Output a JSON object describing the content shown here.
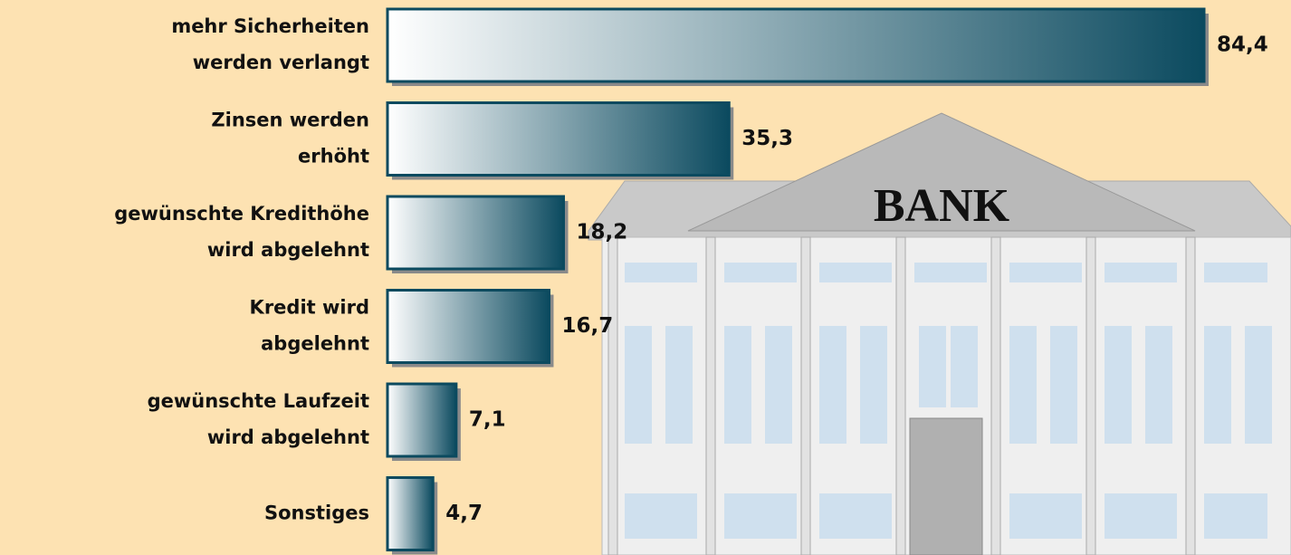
{
  "chart_data": {
    "type": "bar",
    "orientation": "horizontal",
    "categories": [
      [
        "mehr Sicherheiten",
        "werden verlangt"
      ],
      [
        "Zinsen werden",
        "erhöht"
      ],
      [
        "gewünschte Kredithöhe",
        "wird abgelehnt"
      ],
      [
        "Kredit wird",
        "abgelehnt"
      ],
      [
        "gewünschte Laufzeit",
        "wird abgelehnt"
      ],
      [
        "Sonstiges"
      ]
    ],
    "values": [
      84.4,
      35.3,
      18.2,
      16.7,
      7.1,
      4.7
    ],
    "value_labels": [
      "84,4",
      "35,3",
      "18,2",
      "16,7",
      "7,1",
      "4,7"
    ],
    "color": "#0b4a5f",
    "building_label": "BANK"
  }
}
